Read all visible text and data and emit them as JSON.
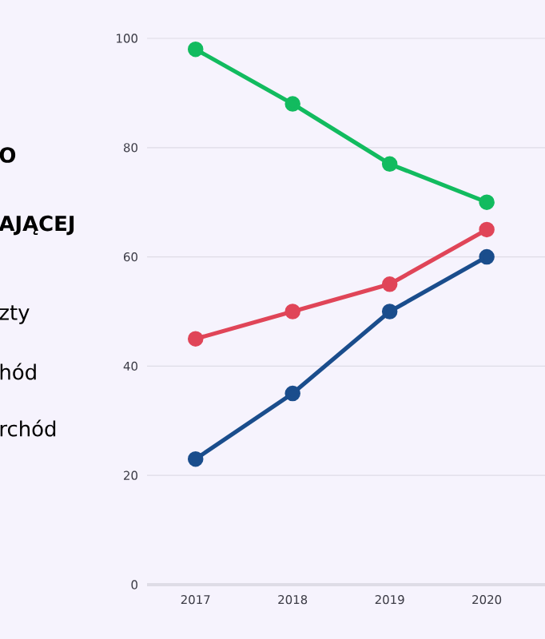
{
  "chart_data": {
    "type": "line",
    "title": "O",
    "subtitle": "AJĄCEJ",
    "annotations": [
      "zty",
      "hód",
      "rchód"
    ],
    "x": [
      2017,
      2018,
      2019,
      2020
    ],
    "xlim": [
      2016.5,
      2020.6
    ],
    "xticks": [
      2017,
      2018,
      2019,
      2020
    ],
    "ylim": [
      0,
      100
    ],
    "yticks": [
      0,
      20,
      40,
      60,
      80,
      100
    ],
    "grid": "y",
    "marker": "circle",
    "line_style": "solid",
    "series": [
      {
        "color": "#12bb5f",
        "values": [
          98,
          88,
          77,
          70
        ]
      },
      {
        "color": "#e04558",
        "values": [
          45,
          50,
          55,
          65
        ]
      },
      {
        "color": "#1a4d8c",
        "values": [
          23,
          35,
          50,
          60
        ]
      }
    ]
  }
}
